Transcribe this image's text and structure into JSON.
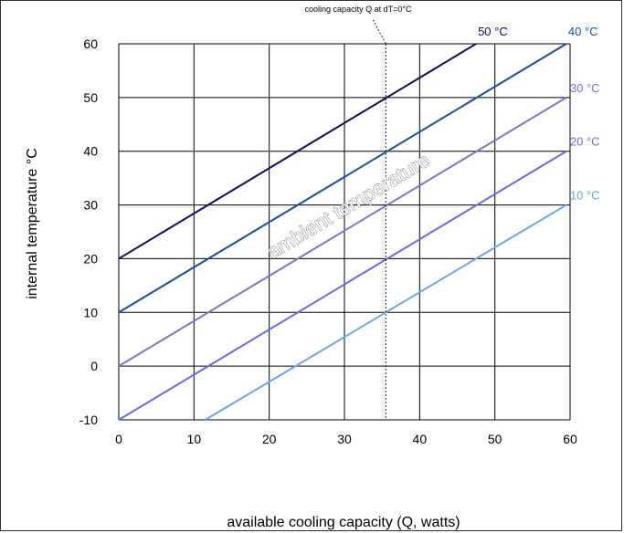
{
  "chart_data": {
    "type": "line",
    "title": "",
    "xlabel": "available cooling capacity (Q, watts)",
    "ylabel": "internal temperature °C",
    "xlim": [
      0,
      60
    ],
    "ylim": [
      -10,
      60
    ],
    "xticks": [
      "0",
      "10",
      "20",
      "30",
      "40",
      "50",
      "60"
    ],
    "yticks": [
      "-10",
      "0",
      "10",
      "20",
      "30",
      "40",
      "50",
      "60"
    ],
    "grid": true,
    "overlay_label": "ambient temperature",
    "reference_line": {
      "x": 35.5,
      "label": "cooling capacity Q at dT=0°C"
    },
    "series": [
      {
        "name": "50 °C",
        "color": "#0d0d5e",
        "points": [
          [
            0,
            20
          ],
          [
            47.5,
            60
          ]
        ]
      },
      {
        "name": "40 °C",
        "color": "#1a4d99",
        "points": [
          [
            0,
            10
          ],
          [
            59.5,
            60
          ]
        ]
      },
      {
        "name": "30 °C",
        "color": "#7777cc",
        "points": [
          [
            0,
            0
          ],
          [
            59.5,
            50
          ]
        ]
      },
      {
        "name": "20 °C",
        "color": "#6b6be0",
        "points": [
          [
            0,
            -10
          ],
          [
            59.5,
            40
          ]
        ]
      },
      {
        "name": "10 °C",
        "color": "#6fa3ec",
        "points": [
          [
            11.5,
            -10
          ],
          [
            59.5,
            30
          ]
        ]
      }
    ]
  }
}
